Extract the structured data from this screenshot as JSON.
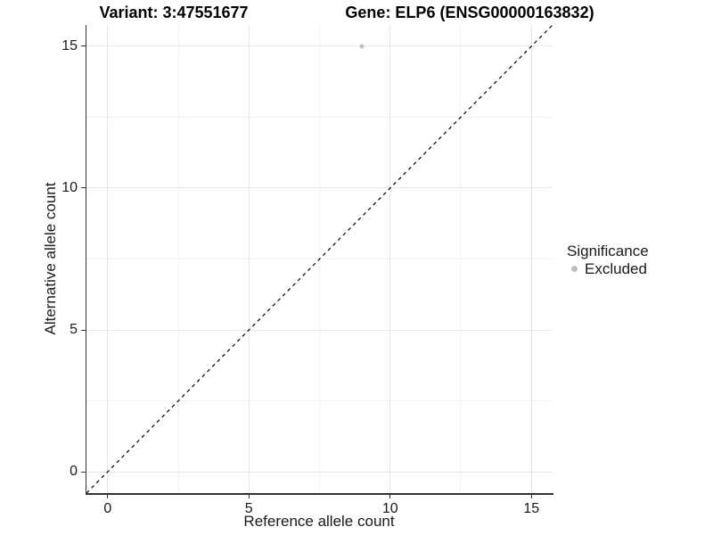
{
  "chart_data": {
    "type": "scatter",
    "variant_title": "Variant: 3:47551677",
    "gene_title": "Gene: ELP6 (ENSG00000163832)",
    "xlabel": "Reference allele count",
    "ylabel": "Alternative allele count",
    "x_ticks": [
      0,
      5,
      10,
      15
    ],
    "y_ticks": [
      0,
      5,
      10,
      15
    ],
    "xlim": [
      -0.75,
      15.75
    ],
    "ylim": [
      -0.75,
      15.75
    ],
    "grid": "major and minor gridlines, light grey on white",
    "legend_position": "right",
    "legend": {
      "title": "Significance",
      "items": [
        {
          "label": "Excluded",
          "color": "#bdbdbd"
        }
      ]
    },
    "series": [
      {
        "name": "Excluded",
        "color": "#c2c2c2",
        "points": [
          {
            "x": 9,
            "y": 15
          }
        ]
      }
    ],
    "reference_line": {
      "kind": "identity y=x",
      "style": "dashed",
      "color": "#000000"
    }
  },
  "colors": {
    "background": "#ffffff",
    "grid_major": "#e6e6e6",
    "grid_minor": "#f3f3f3",
    "axis": "#333333",
    "text": "#1a1a1a",
    "title": "#000000"
  }
}
